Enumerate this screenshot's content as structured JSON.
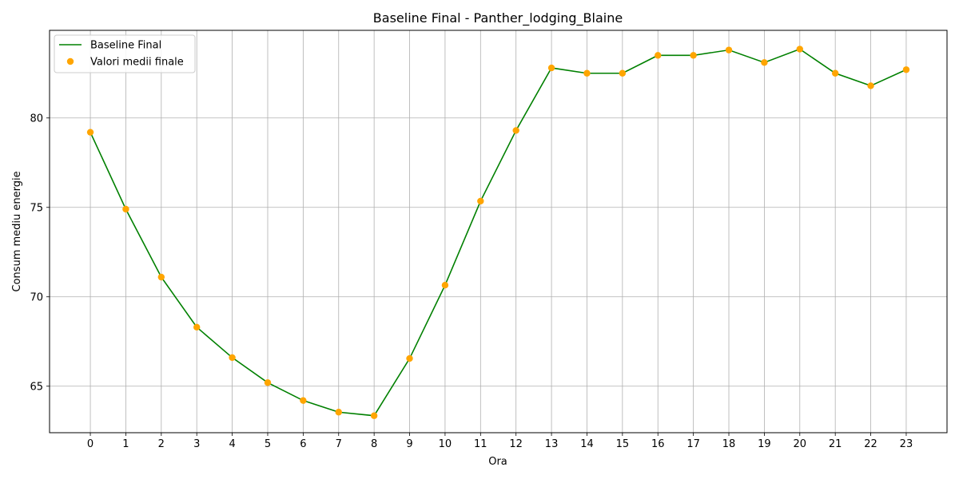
{
  "chart_data": {
    "type": "line",
    "title": "Baseline Final - Panther_lodging_Blaine",
    "xlabel": "Ora",
    "ylabel": "Consum mediu energie",
    "x": [
      0,
      1,
      2,
      3,
      4,
      5,
      6,
      7,
      8,
      9,
      10,
      11,
      12,
      13,
      14,
      15,
      16,
      17,
      18,
      19,
      20,
      21,
      22,
      23
    ],
    "xlim": [
      -1.15,
      24.15
    ],
    "ylim": [
      62.4,
      84.9
    ],
    "yticks": [
      65,
      70,
      75,
      80
    ],
    "grid": true,
    "legend_position": "top-left",
    "series": [
      {
        "name": "Baseline Final",
        "kind": "line",
        "color": "#008000",
        "values": [
          79.2,
          74.9,
          71.1,
          68.3,
          66.6,
          65.2,
          64.2,
          63.55,
          63.35,
          66.55,
          70.65,
          75.35,
          79.3,
          82.8,
          82.5,
          82.5,
          83.5,
          83.5,
          83.8,
          83.1,
          83.85,
          82.5,
          81.8,
          82.7
        ]
      },
      {
        "name": "Valori medii finale",
        "kind": "scatter",
        "color": "#ffa500",
        "values": [
          79.2,
          74.9,
          71.1,
          68.3,
          66.6,
          65.2,
          64.2,
          63.55,
          63.35,
          66.55,
          70.65,
          75.35,
          79.3,
          82.8,
          82.5,
          82.5,
          83.5,
          83.5,
          83.8,
          83.1,
          83.85,
          82.5,
          81.8,
          82.7
        ]
      }
    ]
  }
}
